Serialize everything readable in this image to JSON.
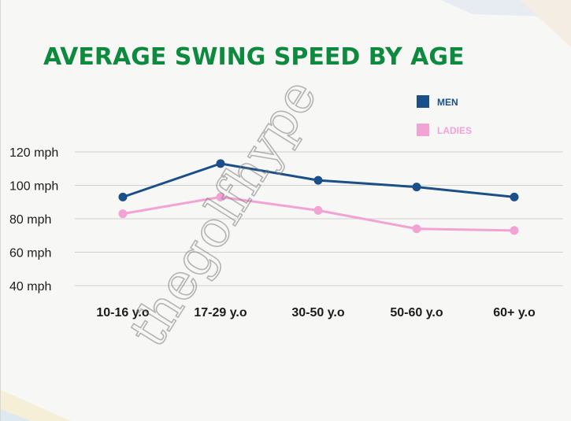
{
  "chart_data": {
    "type": "line",
    "title": "AVERAGE SWING SPEED BY AGE",
    "categories": [
      "10-16 y.o",
      "17-29 y.o",
      "30-50 y.o",
      "50-60 y.o",
      "60+ y.o"
    ],
    "ylim": [
      40,
      120
    ],
    "yticks": [
      120,
      100,
      80,
      60,
      40
    ],
    "ytick_labels": [
      "120 mph",
      "100 mph",
      "80 mph",
      "60 mph",
      "40 mph"
    ],
    "grid": true,
    "legend_position": "top-right",
    "series": [
      {
        "name": "MEN",
        "color": "#1b4f8a",
        "values": [
          93,
          113,
          103,
          99,
          93
        ]
      },
      {
        "name": "LADIES",
        "color": "#f3a2d4",
        "values": [
          83,
          93,
          85,
          74,
          73
        ]
      }
    ]
  },
  "watermark": "thegolfhype",
  "colors": {
    "title": "#0e8a3e",
    "grid": "#cfcfcf",
    "background": "#f7f7f6"
  }
}
